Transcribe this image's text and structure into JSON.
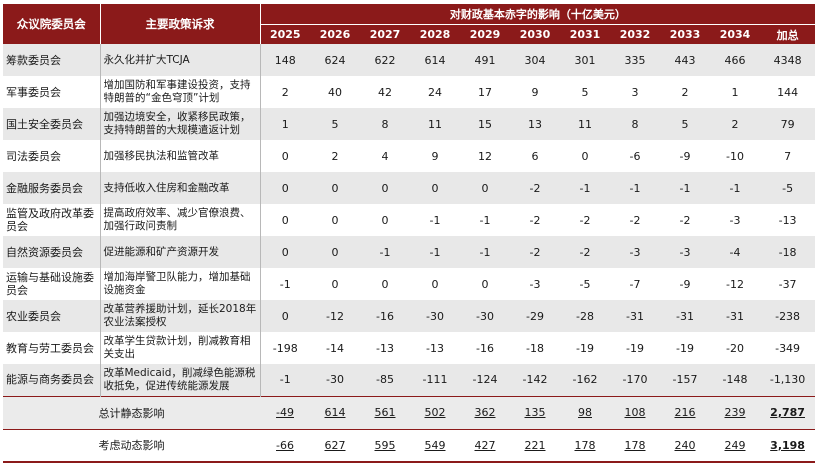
{
  "header": {
    "committee": "众议院委员会",
    "policy": "主要政策诉求",
    "impact": "对财政基本赤字的影响（十亿美元）",
    "years": [
      "2025",
      "2026",
      "2027",
      "2028",
      "2029",
      "2030",
      "2031",
      "2032",
      "2033",
      "2034",
      "加总"
    ]
  },
  "rows": [
    {
      "committee": "筹款委员会",
      "policy": "永久化并扩大TCJA",
      "values": [
        "148",
        "624",
        "622",
        "614",
        "491",
        "304",
        "301",
        "335",
        "443",
        "466",
        "4348"
      ]
    },
    {
      "committee": "军事委员会",
      "policy": "增加国防和军事建设投资，支持特朗普的“金色穹顶”计划",
      "values": [
        "2",
        "40",
        "42",
        "24",
        "17",
        "9",
        "5",
        "3",
        "2",
        "1",
        "144"
      ]
    },
    {
      "committee": "国土安全委员会",
      "policy": "加强边境安全，收紧移民政策，支持特朗普的大规模遣返计划",
      "values": [
        "1",
        "5",
        "8",
        "11",
        "15",
        "13",
        "11",
        "8",
        "5",
        "2",
        "79"
      ]
    },
    {
      "committee": "司法委员会",
      "policy": "加强移民执法和监管改革",
      "values": [
        "0",
        "2",
        "4",
        "9",
        "12",
        "6",
        "0",
        "-6",
        "-9",
        "-10",
        "7"
      ]
    },
    {
      "committee": "金融服务委员会",
      "policy": "支持低收入住房和金融改革",
      "values": [
        "0",
        "0",
        "0",
        "0",
        "0",
        "-2",
        "-1",
        "-1",
        "-1",
        "-1",
        "-5"
      ]
    },
    {
      "committee": "监管及政府改革委员会",
      "policy": "提高政府效率、减少官僚浪费、加强行政问责制",
      "values": [
        "0",
        "0",
        "0",
        "-1",
        "-1",
        "-2",
        "-2",
        "-2",
        "-2",
        "-3",
        "-13"
      ]
    },
    {
      "committee": "自然资源委员会",
      "policy": "促进能源和矿产资源开发",
      "values": [
        "0",
        "0",
        "-1",
        "-1",
        "-1",
        "-2",
        "-2",
        "-3",
        "-3",
        "-4",
        "-18"
      ]
    },
    {
      "committee": "运输与基础设施委员会",
      "policy": "增加海岸警卫队能力，增加基础设施资金",
      "values": [
        "-1",
        "0",
        "0",
        "0",
        "0",
        "-3",
        "-5",
        "-7",
        "-9",
        "-12",
        "-37"
      ]
    },
    {
      "committee": "农业委员会",
      "policy": "改革营养援助计划，延长2018年农业法案授权",
      "values": [
        "0",
        "-12",
        "-16",
        "-30",
        "-30",
        "-29",
        "-28",
        "-31",
        "-31",
        "-31",
        "-238"
      ]
    },
    {
      "committee": "教育与劳工委员会",
      "policy": "改革学生贷款计划，削减教育相关支出",
      "values": [
        "-198",
        "-14",
        "-13",
        "-13",
        "-16",
        "-18",
        "-19",
        "-19",
        "-19",
        "-20",
        "-349"
      ]
    },
    {
      "committee": "能源与商务委员会",
      "policy": "改革Medicaid，削减绿色能源税收抵免，促进传统能源发展",
      "values": [
        "-1",
        "-30",
        "-85",
        "-111",
        "-124",
        "-142",
        "-162",
        "-170",
        "-157",
        "-148",
        "-1,130"
      ]
    }
  ],
  "total_static": {
    "label": "总计静态影响",
    "values": [
      "-49",
      "614",
      "561",
      "502",
      "362",
      "135",
      "98",
      "108",
      "216",
      "239",
      "2,787"
    ]
  },
  "total_dynamic": {
    "label": "考虑动态影响",
    "values": [
      "-66",
      "627",
      "595",
      "549",
      "427",
      "221",
      "178",
      "178",
      "240",
      "249",
      "3,198"
    ]
  }
}
